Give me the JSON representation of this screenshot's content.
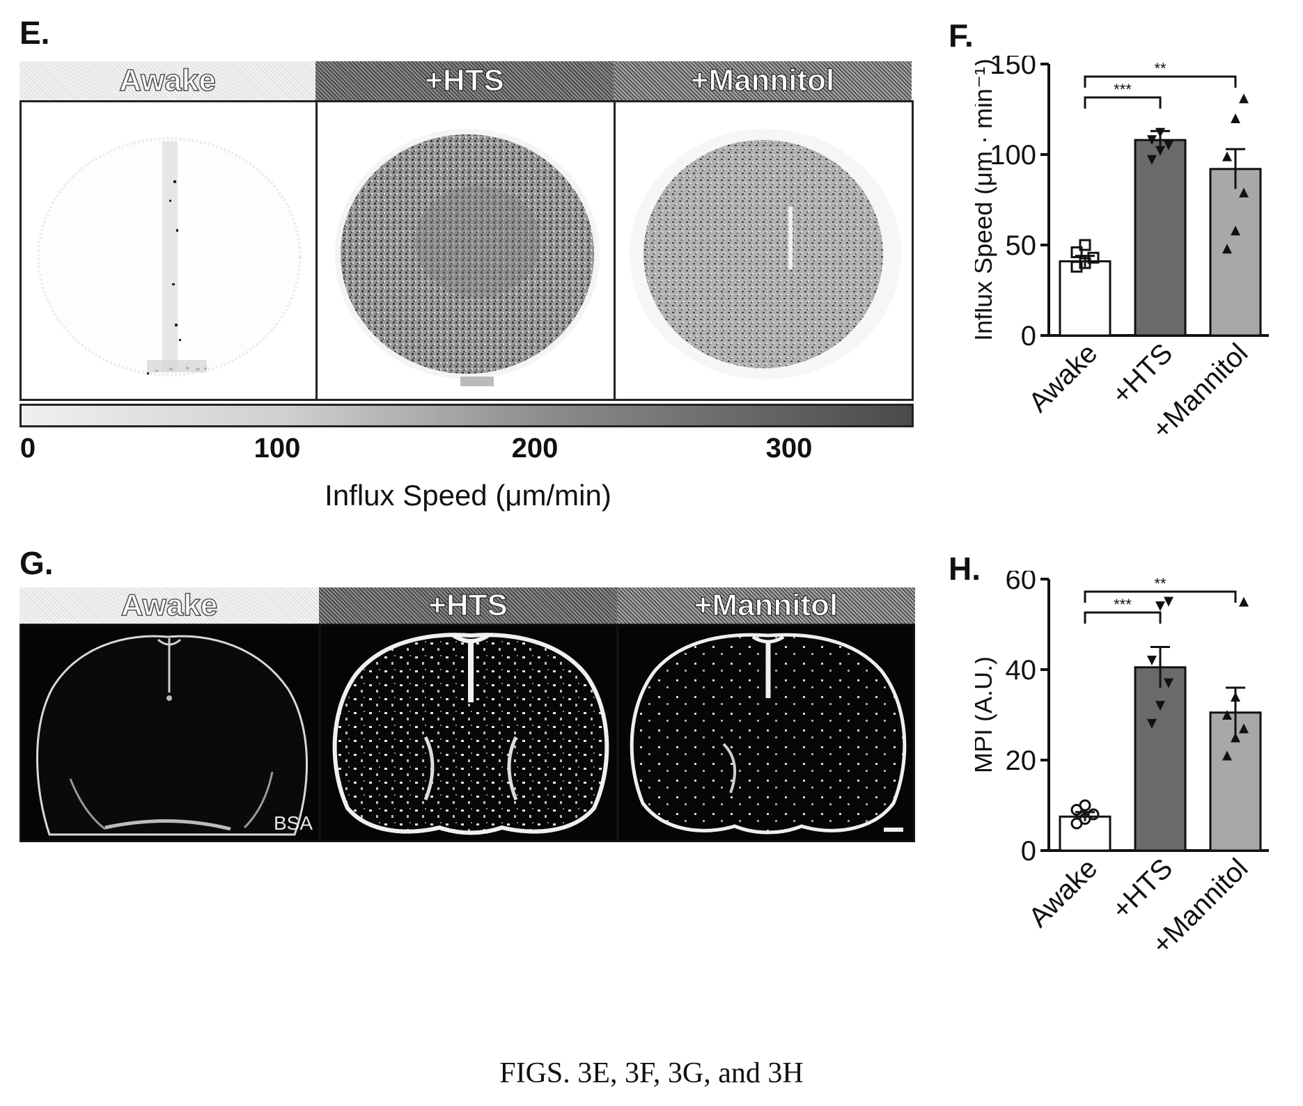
{
  "panels": {
    "e": {
      "letter": "E.",
      "conditions": [
        "Awake",
        "+HTS",
        "+Mannitol"
      ],
      "colorbar": {
        "ticks": [
          "0",
          "100",
          "200",
          "300"
        ],
        "label": "Influx Speed (μm/min)"
      }
    },
    "f": {
      "letter": "F."
    },
    "g": {
      "letter": "G.",
      "conditions": [
        "Awake",
        "+HTS",
        "+Mannitol"
      ],
      "annotation": "BSA"
    },
    "h": {
      "letter": "H."
    }
  },
  "chart_data": [
    {
      "id": "F",
      "type": "bar",
      "categories": [
        "Awake",
        "+HTS",
        "+Mannitol"
      ],
      "values": [
        41,
        108,
        92
      ],
      "errors": [
        3,
        5,
        11
      ],
      "points": [
        [
          38,
          40,
          43,
          46,
          50
        ],
        [
          97,
          102,
          105,
          108,
          112
        ],
        [
          48,
          58,
          79,
          99,
          120,
          131
        ]
      ],
      "markers": [
        "square",
        "triangle-down",
        "triangle-up"
      ],
      "fills": [
        "#ffffff",
        "#6a6a6a",
        "#a8a8a8"
      ],
      "ylabel": "Influx Speed (μm · min⁻¹)",
      "ylim": [
        0,
        150
      ],
      "yticks": [
        "0",
        "50",
        "100",
        "150"
      ],
      "significance": [
        {
          "from": 0,
          "to": 1,
          "label": "***"
        },
        {
          "from": 0,
          "to": 2,
          "label": "**"
        }
      ]
    },
    {
      "id": "H",
      "type": "bar",
      "categories": [
        "Awake",
        "+HTS",
        "+Mannitol"
      ],
      "values": [
        7.5,
        40.5,
        30.5
      ],
      "errors": [
        1,
        4.5,
        5.5
      ],
      "points": [
        [
          6,
          7,
          8,
          9,
          10
        ],
        [
          28,
          32,
          37,
          42,
          54,
          55
        ],
        [
          21,
          25,
          27,
          30,
          34,
          55
        ]
      ],
      "markers": [
        "circle",
        "triangle-down",
        "triangle-up"
      ],
      "fills": [
        "#ffffff",
        "#6a6a6a",
        "#a8a8a8"
      ],
      "ylabel": "MPI (A.U.)",
      "ylim": [
        0,
        60
      ],
      "yticks": [
        "0",
        "20",
        "40",
        "60"
      ],
      "significance": [
        {
          "from": 0,
          "to": 1,
          "label": "***"
        },
        {
          "from": 0,
          "to": 2,
          "label": "**"
        }
      ]
    }
  ],
  "caption": "FIGS. 3E, 3F, 3G, and 3H"
}
